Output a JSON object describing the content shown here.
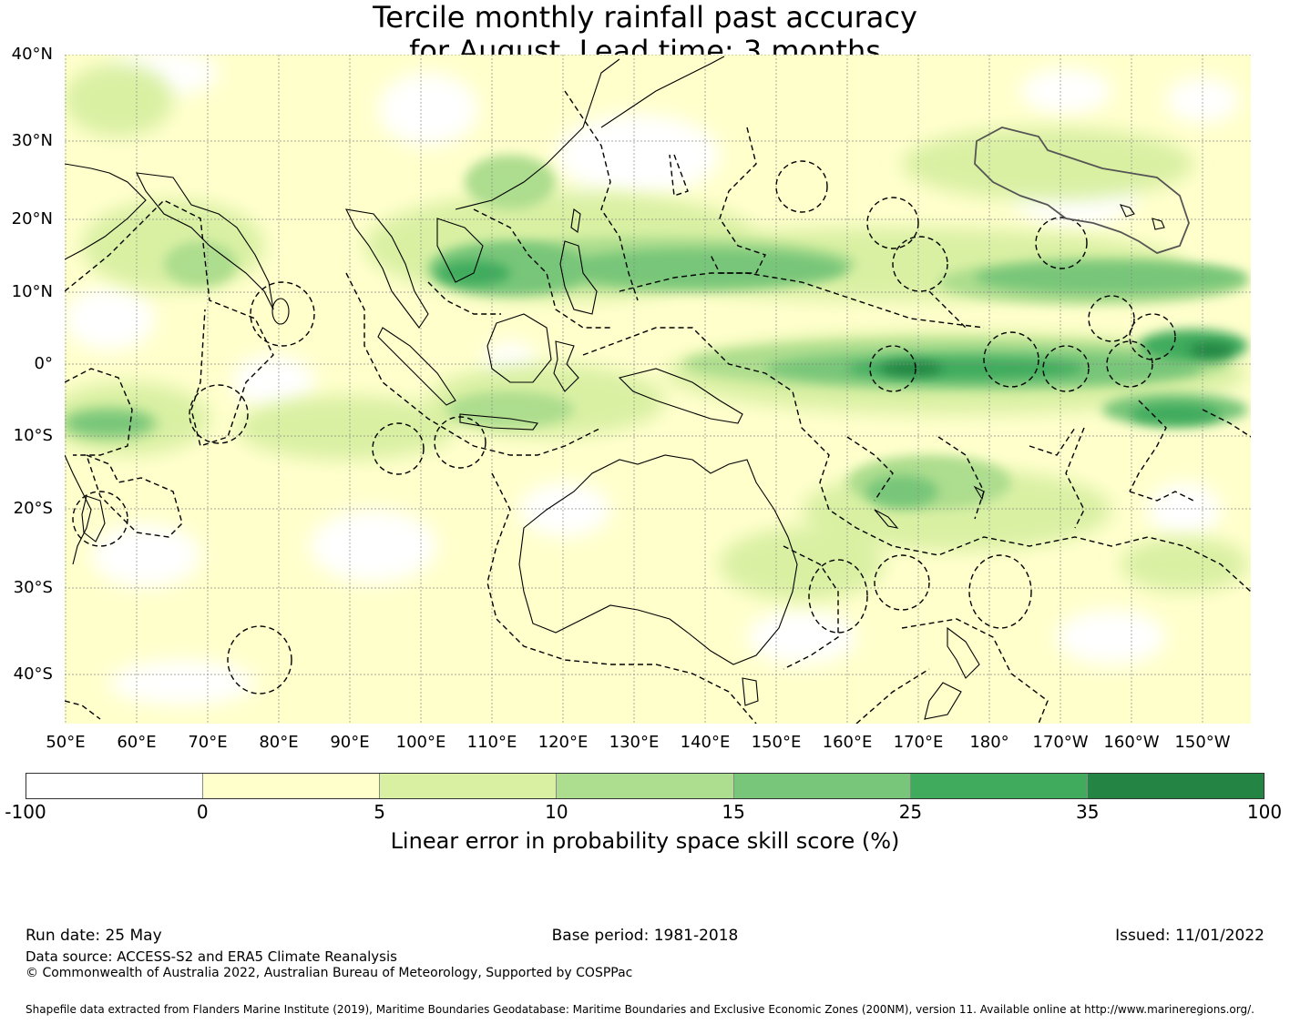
{
  "title": {
    "line1": "Tercile monthly rainfall past accuracy",
    "line2": "for August. Lead time: 3 months"
  },
  "map": {
    "lat_labels": [
      "40°N",
      "30°N",
      "20°N",
      "10°N",
      "0°",
      "10°S",
      "20°S",
      "30°S",
      "40°S"
    ],
    "lon_labels": [
      "50°E",
      "60°E",
      "70°E",
      "80°E",
      "90°E",
      "100°E",
      "110°E",
      "120°E",
      "130°E",
      "140°E",
      "150°E",
      "160°E",
      "170°E",
      "180°",
      "170°W",
      "160°W",
      "150°W"
    ],
    "colors": {
      "land_outline": "#000000",
      "eez_boundary": "#000000",
      "grid": "#888888"
    }
  },
  "colorbar": {
    "ticks": [
      "-100",
      "0",
      "5",
      "10",
      "15",
      "25",
      "35",
      "100"
    ],
    "colors": [
      "#ffffff",
      "#ffffcc",
      "#d9f0a3",
      "#addd8e",
      "#78c679",
      "#41ab5d",
      "#238443"
    ],
    "label": "Linear error in probability space skill score (%)"
  },
  "footer": {
    "run_date": "Run date: 25 May",
    "base_period": "Base period: 1981-2018",
    "issued": "Issued: 11/01/2022",
    "data_source": "Data source: ACCESS-S2 and ERA5 Climate Reanalysis",
    "copyright": "© Commonwealth of Australia 2022, Australian Bureau of Meteorology, Supported by COSPPac",
    "shapefile": "Shapefile data extracted from Flanders Marine Institute (2019), Maritime Boundaries Geodatabase: Maritime Boundaries and Exclusive Economic Zones (200NM), version 11. Available online at http://www.marineregions.org/."
  }
}
